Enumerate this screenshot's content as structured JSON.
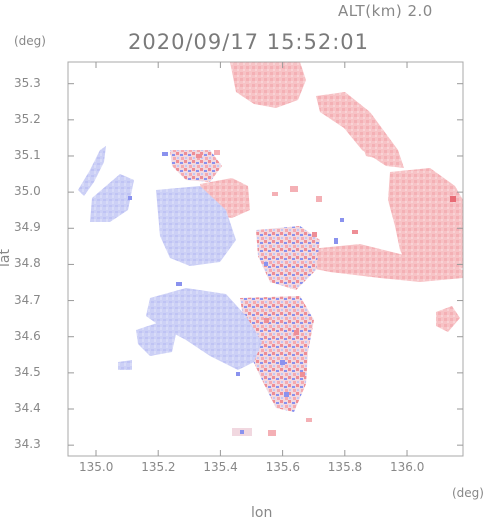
{
  "header": {
    "altitude_label": "ALT(km) 2.0",
    "timestamp": "2020/09/17 15:52:01"
  },
  "axes": {
    "x_unit": "(deg)",
    "y_unit": "(deg)",
    "x_label": "lon",
    "y_label": "lat",
    "x_ticks": [
      "135.0",
      "135.2",
      "135.4",
      "135.6",
      "135.8",
      "136.0"
    ],
    "y_ticks": [
      "34.3",
      "34.4",
      "34.5",
      "34.6",
      "34.7",
      "34.8",
      "34.9",
      "35.0",
      "35.1",
      "35.2",
      "35.3"
    ],
    "lon_range": [
      134.91,
      136.18
    ],
    "lat_range": [
      34.27,
      35.36
    ]
  },
  "colors": {
    "positive": "#f6b9bd",
    "positive_strong": "#ee8e96",
    "negative": "#c3c7f5",
    "negative_strong": "#8a92ee",
    "frame": "#a8a8a8",
    "grid": "#cccccc"
  }
}
